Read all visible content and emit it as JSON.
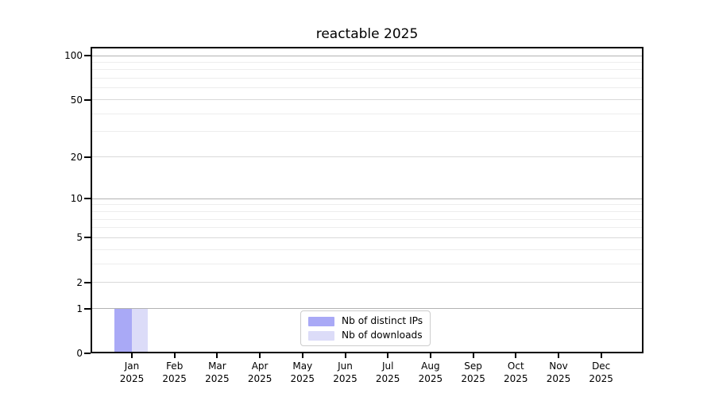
{
  "chart_data": {
    "type": "bar",
    "title": "reactable 2025",
    "months": [
      "Jan",
      "Feb",
      "Mar",
      "Apr",
      "May",
      "Jun",
      "Jul",
      "Aug",
      "Sep",
      "Oct",
      "Nov",
      "Dec"
    ],
    "year": "2025",
    "y_scale": "log1p",
    "ylim": [
      0,
      114
    ],
    "grid": true,
    "legend_position": "lower center",
    "y_ticks": [
      0,
      1,
      2,
      5,
      10,
      20,
      50,
      100
    ],
    "y_tick_labels": [
      "0",
      "1",
      "2",
      "5",
      "10",
      "20",
      "50",
      "100"
    ],
    "y_minor_gridlines": [
      3,
      4,
      6,
      7,
      8,
      9,
      30,
      40,
      60,
      70,
      80,
      90
    ],
    "series": [
      {
        "name": "Nb of distinct IPs",
        "color": "#a9a9f6",
        "values": [
          1,
          0,
          0,
          0,
          0,
          0,
          0,
          0,
          0,
          0,
          0,
          0
        ]
      },
      {
        "name": "Nb of downloads",
        "color": "#dcdcf8",
        "values": [
          1,
          0,
          0,
          0,
          0,
          0,
          0,
          0,
          0,
          0,
          0,
          0
        ]
      }
    ]
  },
  "colors": {
    "grid_major": "#b2b2b2",
    "grid_mid": "#d9d9d9",
    "grid_minor": "#ededed",
    "frame": "#000000",
    "legend_border": "#cccccc",
    "background": "#ffffff"
  }
}
